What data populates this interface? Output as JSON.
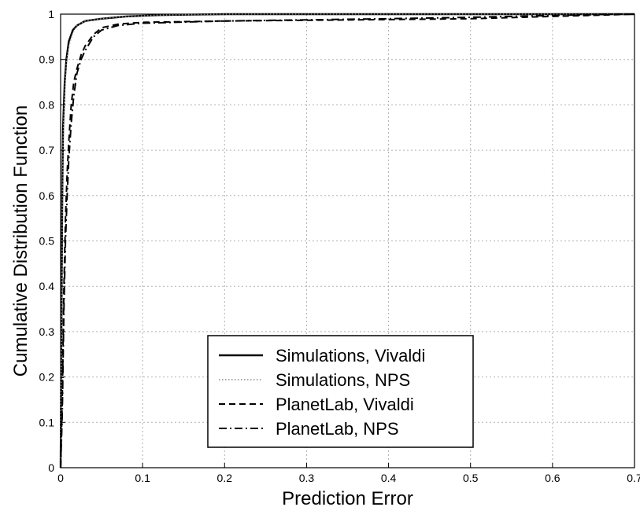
{
  "chart_data": {
    "type": "line",
    "title": "",
    "xlabel": "Prediction Error",
    "ylabel": "Cumulative Distribution Function",
    "xlim": [
      0,
      0.7
    ],
    "ylim": [
      0,
      1
    ],
    "x_ticks": [
      "0",
      "0.1",
      "0.2",
      "0.3",
      "0.4",
      "0.5",
      "0.6",
      "0.7"
    ],
    "y_ticks": [
      "0",
      "0.1",
      "0.2",
      "0.3",
      "0.4",
      "0.5",
      "0.6",
      "0.7",
      "0.8",
      "0.9",
      "1"
    ],
    "grid": true,
    "legend_position": "bottom-center",
    "series": [
      {
        "name": "Simulations, Vivaldi",
        "style": "solid",
        "x": [
          0,
          0.001,
          0.002,
          0.003,
          0.005,
          0.007,
          0.01,
          0.015,
          0.02,
          0.03,
          0.05,
          0.08,
          0.12,
          0.2,
          0.7
        ],
        "y": [
          0,
          0.3,
          0.6,
          0.75,
          0.85,
          0.9,
          0.94,
          0.965,
          0.975,
          0.985,
          0.99,
          0.995,
          0.998,
          1.0,
          1.0
        ]
      },
      {
        "name": "Simulations, NPS",
        "style": "dotted",
        "x": [
          0,
          0.001,
          0.002,
          0.003,
          0.005,
          0.007,
          0.01,
          0.015,
          0.02,
          0.03,
          0.05,
          0.08,
          0.12,
          0.2,
          0.7
        ],
        "y": [
          0,
          0.25,
          0.55,
          0.72,
          0.83,
          0.89,
          0.93,
          0.96,
          0.975,
          0.985,
          0.99,
          0.995,
          0.998,
          1.0,
          1.0
        ]
      },
      {
        "name": "PlanetLab, Vivaldi",
        "style": "dashed",
        "x": [
          0,
          0.002,
          0.004,
          0.006,
          0.008,
          0.01,
          0.013,
          0.016,
          0.02,
          0.025,
          0.03,
          0.04,
          0.05,
          0.07,
          0.1,
          0.2,
          0.4,
          0.5,
          0.6,
          0.7
        ],
        "y": [
          0,
          0.15,
          0.4,
          0.55,
          0.65,
          0.72,
          0.8,
          0.85,
          0.88,
          0.91,
          0.93,
          0.955,
          0.97,
          0.978,
          0.982,
          0.985,
          0.988,
          0.99,
          0.995,
          1.0
        ]
      },
      {
        "name": "PlanetLab, NPS",
        "style": "dashdot",
        "x": [
          0,
          0.002,
          0.004,
          0.006,
          0.008,
          0.01,
          0.013,
          0.016,
          0.02,
          0.025,
          0.03,
          0.04,
          0.05,
          0.07,
          0.1,
          0.2,
          0.4,
          0.5,
          0.6,
          0.68,
          0.7
        ],
        "y": [
          0,
          0.12,
          0.35,
          0.5,
          0.6,
          0.68,
          0.76,
          0.82,
          0.87,
          0.9,
          0.92,
          0.95,
          0.965,
          0.975,
          0.98,
          0.985,
          0.99,
          0.993,
          0.997,
          1.0,
          1.0
        ]
      }
    ]
  }
}
